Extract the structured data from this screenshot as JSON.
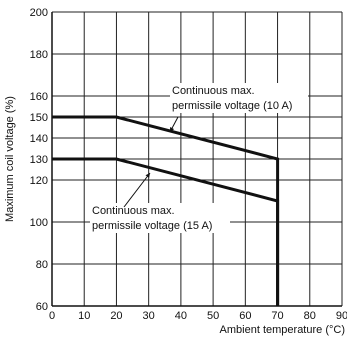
{
  "chart_data": {
    "type": "line",
    "xlabel": "Ambient temperature (°C)",
    "ylabel": "Maximum coil voltage (%)",
    "xlim": [
      0,
      90
    ],
    "ylim": [
      60,
      200
    ],
    "x_ticks": [
      0,
      10,
      20,
      30,
      40,
      50,
      60,
      70,
      80,
      90
    ],
    "x_tick_labels": [
      "0",
      "10",
      "20",
      "30",
      "40",
      "50",
      "60",
      "70",
      "80",
      "90"
    ],
    "y_ticks": [
      60,
      80,
      100,
      120,
      130,
      140,
      150,
      160,
      180,
      200
    ],
    "y_tick_labels": [
      "60",
      "80",
      "100",
      "120",
      "130",
      "140",
      "150",
      "160",
      "180",
      "200"
    ],
    "grid": true,
    "series": [
      {
        "name": "Continuous max. permissile voltage (10 A)",
        "x": [
          0,
          20,
          70,
          70
        ],
        "y": [
          150,
          150,
          130,
          60
        ]
      },
      {
        "name": "Continuous max. permissile voltage (15 A)",
        "x": [
          0,
          20,
          70,
          70
        ],
        "y": [
          130,
          130,
          110,
          60
        ]
      }
    ],
    "annotations": [
      {
        "lines": [
          "Continuous max.",
          "permissile voltage (10 A)"
        ],
        "series": 0
      },
      {
        "lines": [
          "Continuous max.",
          "permissile voltage (15 A)"
        ],
        "series": 1
      }
    ]
  }
}
